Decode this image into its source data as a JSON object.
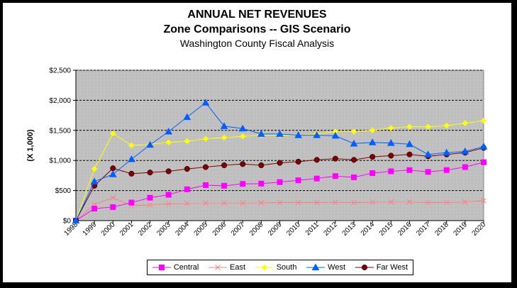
{
  "title": "ANNUAL NET REVENUES",
  "subtitle": "Zone Comparisons -- GIS Scenario",
  "subtitle2": "Washington County Fiscal Analysis",
  "chart_data": {
    "type": "line",
    "title": "ANNUAL NET REVENUES",
    "ylabel": "(X 1,000)",
    "xlabel": "",
    "ylim": [
      0,
      2500
    ],
    "yticks": [
      0,
      500,
      1000,
      1500,
      2000,
      2500
    ],
    "ytick_labels": [
      "$0",
      "$500",
      "$1,000",
      "$1,500",
      "$2,000",
      "$2,500"
    ],
    "grid": true,
    "legend_position": "bottom",
    "categories": [
      "1998",
      "1999",
      "2000",
      "2001",
      "2002",
      "2003",
      "2004",
      "2005",
      "2006",
      "2007",
      "2008",
      "2009",
      "2010",
      "2011",
      "2012",
      "2013",
      "2014",
      "2015",
      "2016",
      "2017",
      "2018",
      "2019",
      "2020"
    ],
    "series": [
      {
        "name": "Central",
        "color": "#ff00ff",
        "marker": "square",
        "values": [
          0,
          200,
          225,
          300,
          380,
          430,
          520,
          590,
          580,
          610,
          615,
          640,
          670,
          700,
          740,
          720,
          790,
          820,
          840,
          810,
          840,
          890,
          970
        ]
      },
      {
        "name": "East",
        "color": "#ff8080",
        "marker": "x",
        "values": [
          0,
          270,
          380,
          250,
          260,
          280,
          285,
          290,
          290,
          290,
          295,
          300,
          300,
          300,
          305,
          300,
          305,
          310,
          310,
          300,
          300,
          310,
          330
        ]
      },
      {
        "name": "South",
        "color": "#ffff00",
        "marker": "diamond",
        "values": [
          0,
          860,
          1450,
          1250,
          1270,
          1300,
          1320,
          1360,
          1380,
          1400,
          1420,
          1420,
          1420,
          1440,
          1480,
          1480,
          1500,
          1540,
          1560,
          1560,
          1580,
          1620,
          1660
        ]
      },
      {
        "name": "West",
        "color": "#0060ff",
        "marker": "triangle",
        "values": [
          0,
          650,
          770,
          1020,
          1260,
          1480,
          1720,
          1960,
          1570,
          1530,
          1440,
          1440,
          1420,
          1420,
          1410,
          1280,
          1300,
          1290,
          1270,
          1100,
          1130,
          1150,
          1230
        ]
      },
      {
        "name": "Far West",
        "color": "#800000",
        "marker": "circle",
        "values": [
          0,
          580,
          870,
          780,
          800,
          820,
          860,
          890,
          920,
          940,
          920,
          960,
          980,
          1010,
          1030,
          1010,
          1060,
          1080,
          1100,
          1070,
          1100,
          1130,
          1210
        ]
      }
    ]
  }
}
